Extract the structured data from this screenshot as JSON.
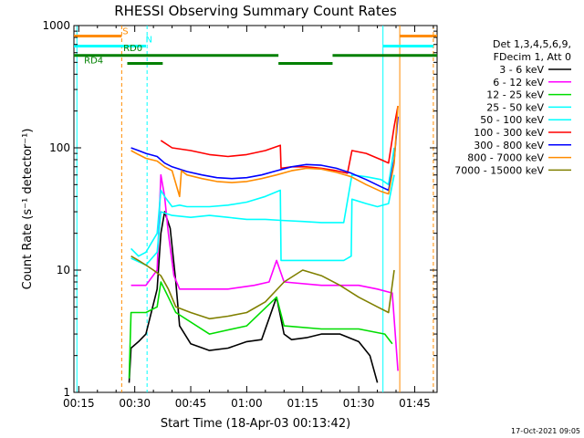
{
  "chart_data": {
    "type": "line",
    "title": "RHESSI Observing Summary Count Rates",
    "xlabel": "Start Time (18-Apr-03 00:13:42)",
    "ylabel": "Count Rate (s⁻¹ detector⁻¹)",
    "yscale": "log",
    "ylim": [
      1,
      1000
    ],
    "xlim": [
      13.7,
      111
    ],
    "x_ticks": [
      {
        "value": 15,
        "label": "00:15"
      },
      {
        "value": 30,
        "label": "00:30"
      },
      {
        "value": 45,
        "label": "00:45"
      },
      {
        "value": 60,
        "label": "01:00"
      },
      {
        "value": 75,
        "label": "01:15"
      },
      {
        "value": 90,
        "label": "01:30"
      },
      {
        "value": 105,
        "label": "01:45"
      }
    ],
    "y_ticks": [
      {
        "value": 1,
        "label": "1"
      },
      {
        "value": 10,
        "label": "10"
      },
      {
        "value": 100,
        "label": "100"
      },
      {
        "value": 1000,
        "label": "1000"
      }
    ],
    "legend_title": [
      "Det 1,3,4,5,6,9,",
      "FDecim 1, Att 0"
    ],
    "timestamp": "17-Oct-2021 09:05",
    "series": [
      {
        "name": "3 - 6 keV",
        "color": "#000000",
        "points": [
          [
            28.5,
            1.2
          ],
          [
            29,
            2.3
          ],
          [
            31,
            2.6
          ],
          [
            33,
            3.0
          ],
          [
            36,
            7
          ],
          [
            37,
            20
          ],
          [
            38,
            30
          ],
          [
            39.5,
            22
          ],
          [
            41,
            8
          ],
          [
            42,
            3.5
          ],
          [
            45,
            2.5
          ],
          [
            50,
            2.2
          ],
          [
            55,
            2.3
          ],
          [
            60,
            2.6
          ],
          [
            64,
            2.7
          ],
          [
            68,
            6
          ],
          [
            70,
            3
          ],
          [
            72,
            2.7
          ],
          [
            76,
            2.8
          ],
          [
            80,
            3
          ],
          [
            85,
            3
          ],
          [
            90,
            2.6
          ],
          [
            93,
            2.0
          ],
          [
            95,
            1.2
          ]
        ]
      },
      {
        "name": "6 - 12 keV",
        "color": "#ff00ff",
        "points": [
          [
            29,
            7.5
          ],
          [
            33,
            7.5
          ],
          [
            36,
            10
          ],
          [
            37,
            60
          ],
          [
            38,
            40
          ],
          [
            39,
            20
          ],
          [
            40.5,
            9
          ],
          [
            42,
            7
          ],
          [
            48,
            7
          ],
          [
            55,
            7
          ],
          [
            62,
            7.5
          ],
          [
            66,
            8
          ],
          [
            68,
            12
          ],
          [
            70,
            8
          ],
          [
            80,
            7.5
          ],
          [
            90,
            7.5
          ],
          [
            95,
            7
          ],
          [
            99,
            6.5
          ],
          [
            100.5,
            1.5
          ]
        ]
      },
      {
        "name": "12 - 25 keV",
        "color": "#00dd00",
        "points": [
          [
            28.5,
            1.3
          ],
          [
            29,
            4.5
          ],
          [
            33,
            4.5
          ],
          [
            36,
            5
          ],
          [
            37,
            8
          ],
          [
            39,
            6
          ],
          [
            41,
            4.5
          ],
          [
            50,
            3
          ],
          [
            60,
            3.5
          ],
          [
            68,
            6
          ],
          [
            70,
            3.5
          ],
          [
            80,
            3.3
          ],
          [
            90,
            3.3
          ],
          [
            97,
            3
          ],
          [
            99,
            2.5
          ]
        ]
      },
      {
        "name": "25 - 50 keV",
        "color": "#00ffff",
        "points": [
          [
            29,
            15
          ],
          [
            31,
            13
          ],
          [
            33,
            14
          ],
          [
            36,
            20
          ],
          [
            37,
            45
          ],
          [
            38,
            40
          ],
          [
            40,
            33
          ],
          [
            42,
            34
          ],
          [
            44,
            33
          ],
          [
            50,
            33
          ],
          [
            55,
            34
          ],
          [
            60,
            36
          ],
          [
            65,
            40
          ],
          [
            69,
            45
          ],
          [
            69.2,
            12
          ],
          [
            75,
            12
          ],
          [
            80,
            12
          ],
          [
            86,
            12
          ],
          [
            88,
            13
          ],
          [
            88.2,
            38
          ],
          [
            92,
            35
          ],
          [
            95,
            33
          ],
          [
            98,
            35
          ],
          [
            99.5,
            60
          ]
        ]
      },
      {
        "name": "50 - 100 keV",
        "color": "#00ffff",
        "points": [
          [
            29,
            12.5
          ],
          [
            33,
            11
          ],
          [
            36,
            14
          ],
          [
            37,
            30
          ],
          [
            40,
            28
          ],
          [
            45,
            27
          ],
          [
            50,
            28
          ],
          [
            55,
            27
          ],
          [
            60,
            26
          ],
          [
            65,
            26
          ],
          [
            69.2,
            25.5
          ],
          [
            75,
            25
          ],
          [
            80,
            24.5
          ],
          [
            86,
            24.5
          ],
          [
            88.2,
            60
          ],
          [
            92,
            58
          ],
          [
            96,
            55
          ],
          [
            98,
            50
          ],
          [
            99.5,
            100
          ]
        ]
      },
      {
        "name": "100 - 300 keV",
        "color": "#ff0000",
        "points": [
          [
            37,
            115
          ],
          [
            40,
            100
          ],
          [
            45,
            95
          ],
          [
            50,
            88
          ],
          [
            55,
            85
          ],
          [
            60,
            88
          ],
          [
            65,
            95
          ],
          [
            69,
            105
          ],
          [
            69.2,
            68
          ],
          [
            72,
            70
          ],
          [
            76,
            70
          ],
          [
            80,
            68
          ],
          [
            84,
            65
          ],
          [
            87,
            62
          ],
          [
            88.2,
            95
          ],
          [
            92,
            90
          ],
          [
            96,
            80
          ],
          [
            98,
            75
          ],
          [
            99.5,
            150
          ],
          [
            100.5,
            220
          ]
        ]
      },
      {
        "name": "300 - 800 keV",
        "color": "#0000ff",
        "points": [
          [
            29,
            100
          ],
          [
            31,
            95
          ],
          [
            33,
            90
          ],
          [
            36,
            85
          ],
          [
            38,
            75
          ],
          [
            40,
            70
          ],
          [
            44,
            64
          ],
          [
            48,
            60
          ],
          [
            52,
            57
          ],
          [
            56,
            56
          ],
          [
            60,
            57
          ],
          [
            64,
            60
          ],
          [
            68,
            65
          ],
          [
            72,
            70
          ],
          [
            76,
            73
          ],
          [
            80,
            72
          ],
          [
            84,
            68
          ],
          [
            88,
            62
          ],
          [
            92,
            55
          ],
          [
            96,
            48
          ],
          [
            98,
            45
          ],
          [
            99.5,
            80
          ],
          [
            100.5,
            180
          ]
        ]
      },
      {
        "name": "800 - 7000 keV",
        "color": "#ff8c00",
        "points": [
          [
            29,
            95
          ],
          [
            31,
            88
          ],
          [
            33,
            82
          ],
          [
            36,
            78
          ],
          [
            38,
            70
          ],
          [
            40,
            65
          ],
          [
            42,
            40
          ],
          [
            42.5,
            65
          ],
          [
            44,
            60
          ],
          [
            48,
            56
          ],
          [
            52,
            53
          ],
          [
            56,
            52
          ],
          [
            60,
            53
          ],
          [
            64,
            56
          ],
          [
            68,
            60
          ],
          [
            72,
            65
          ],
          [
            76,
            68
          ],
          [
            80,
            67
          ],
          [
            84,
            63
          ],
          [
            88,
            58
          ],
          [
            92,
            50
          ],
          [
            96,
            44
          ],
          [
            98,
            42
          ],
          [
            99.5,
            75
          ],
          [
            100.5,
            220
          ]
        ]
      },
      {
        "name": "7000 - 15000 keV",
        "color": "#808000",
        "points": [
          [
            29,
            13
          ],
          [
            31,
            12
          ],
          [
            33,
            11
          ],
          [
            35,
            10
          ],
          [
            37,
            9
          ],
          [
            39,
            7
          ],
          [
            41,
            5
          ],
          [
            45,
            4.5
          ],
          [
            50,
            4
          ],
          [
            55,
            4.2
          ],
          [
            60,
            4.5
          ],
          [
            65,
            5.5
          ],
          [
            70,
            8
          ],
          [
            75,
            10
          ],
          [
            80,
            9
          ],
          [
            85,
            7.5
          ],
          [
            90,
            6
          ],
          [
            95,
            5
          ],
          [
            98,
            4.5
          ],
          [
            99.5,
            10
          ]
        ]
      }
    ],
    "state_bars": [
      {
        "label": "S",
        "color": "#ff8c00",
        "y": 820,
        "segments": [
          [
            13.7,
            26.5
          ],
          [
            101,
            111
          ]
        ]
      },
      {
        "label": "N",
        "color": "#00ffff",
        "y": 680,
        "segments": [
          [
            13.7,
            33
          ]
        ]
      },
      {
        "label": "N",
        "color": "#00ffff",
        "y": 680,
        "segments": [
          [
            96.5,
            110
          ]
        ]
      },
      {
        "label": "RD0",
        "color": "#008000",
        "y": 570,
        "segments": [
          [
            13.7,
            68.5
          ],
          [
            83,
            111
          ]
        ]
      },
      {
        "label": "RD4",
        "color": "#008000",
        "y": 490,
        "segments": [
          [
            28,
            37.5
          ],
          [
            68.5,
            83
          ]
        ]
      }
    ],
    "vlines": [
      {
        "x": 14.5,
        "color": "#00ffff",
        "style": "solid"
      },
      {
        "x": 26.5,
        "color": "#ff8c00",
        "style": "dashed"
      },
      {
        "x": 33.3,
        "color": "#00ffff",
        "style": "dashed"
      },
      {
        "x": 96.5,
        "color": "#00ffff",
        "style": "solid"
      },
      {
        "x": 101,
        "color": "#ff8c00",
        "style": "solid"
      },
      {
        "x": 110,
        "color": "#ff8c00",
        "style": "dashed"
      }
    ],
    "bar_labels": [
      {
        "text": "S",
        "color": "#ff8c00",
        "x": 27.5,
        "y": 850
      },
      {
        "text": "N",
        "color": "#00ffff",
        "x": 33.8,
        "y": 730
      },
      {
        "text": "RD0",
        "color": "#008000",
        "x": 29.5,
        "y": 620
      },
      {
        "text": "RD4",
        "color": "#008000",
        "x": 19,
        "y": 490
      }
    ]
  }
}
